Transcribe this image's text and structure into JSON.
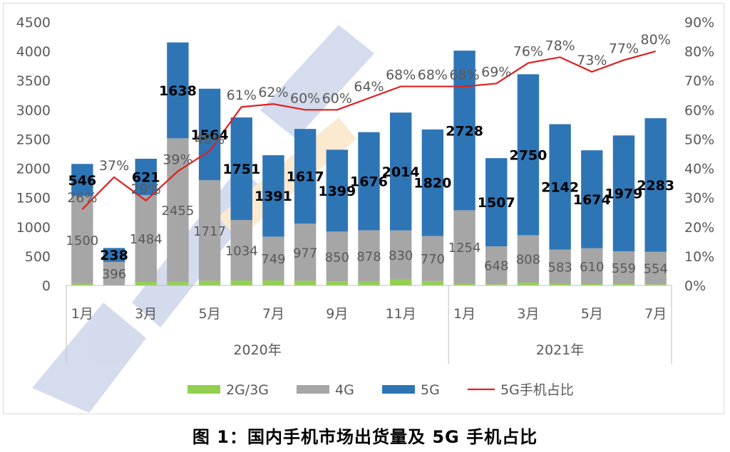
{
  "chart_data": {
    "type": "bar",
    "stacked": true,
    "categories": [
      "2020-1",
      "2020-2",
      "2020-3",
      "2020-4",
      "2020-5",
      "2020-6",
      "2020-7",
      "2020-8",
      "2020-9",
      "2020-10",
      "2020-11",
      "2020-12",
      "2021-1",
      "2021-2",
      "2021-3",
      "2021-4",
      "2021-5",
      "2021-6",
      "2021-7"
    ],
    "tick_labels": [
      "1月",
      "",
      "3月",
      "",
      "5月",
      "",
      "7月",
      "",
      "9月",
      "",
      "11月",
      "",
      "1月",
      "",
      "3月",
      "",
      "5月",
      "",
      "7月"
    ],
    "year_groups": [
      {
        "label": "2020年",
        "count": 12
      },
      {
        "label": "2021年",
        "count": 7
      }
    ],
    "series": [
      {
        "name": "2G/3G",
        "color": "#92d050",
        "axis": "left",
        "values": [
          30,
          6,
          60,
          59,
          80,
          85,
          85,
          80,
          70,
          65,
          110,
          75,
          30,
          20,
          50,
          30,
          25,
          25,
          20
        ]
      },
      {
        "name": "4G",
        "color": "#a6a6a6",
        "axis": "left",
        "values": [
          1500,
          396,
          1484,
          2455,
          1717,
          1034,
          749,
          977,
          850,
          878,
          830,
          770,
          1254,
          648,
          808,
          583,
          610,
          559,
          554
        ]
      },
      {
        "name": "5G",
        "color": "#2e75b6",
        "axis": "left",
        "values": [
          546,
          238,
          621,
          1638,
          1564,
          1751,
          1391,
          1617,
          1399,
          1676,
          2014,
          1820,
          2728,
          1507,
          2750,
          2142,
          1674,
          1979,
          2283
        ]
      },
      {
        "name": "5G手机占比",
        "type": "line",
        "color": "#e02020",
        "axis": "right",
        "values": [
          26,
          37,
          29,
          39,
          46,
          61,
          62,
          60,
          60,
          64,
          68,
          68,
          68,
          69,
          76,
          78,
          73,
          77,
          80
        ]
      }
    ],
    "label_4g": [
      "1500",
      "396",
      "1484",
      "2455",
      "1717",
      "1034",
      "749",
      "977",
      "850",
      "878",
      "830",
      "770",
      "1254",
      "648",
      "808",
      "583",
      "610",
      "559",
      "554"
    ],
    "label_5g": [
      "546",
      "238",
      "621",
      "1638",
      "1564",
      "1751",
      "1391",
      "1617",
      "1399",
      "1676",
      "2014",
      "1820",
      "2728",
      "1507",
      "2750",
      "2142",
      "1674",
      "1979",
      "2283"
    ],
    "label_pct": [
      "26%",
      "37%",
      "29%",
      "39%",
      "46%",
      "61%",
      "62%",
      "60%",
      "60%",
      "64%",
      "68%",
      "68%",
      "68%",
      "69%",
      "76%",
      "78%",
      "73%",
      "77%",
      "80%"
    ],
    "y_left": {
      "min": 0,
      "max": 4500,
      "ticks": [
        "0",
        "500",
        "1000",
        "1500",
        "2000",
        "2500",
        "3000",
        "3500",
        "4000",
        "4500"
      ]
    },
    "y_right": {
      "min": 0,
      "max": 90,
      "ticks": [
        "0%",
        "10%",
        "20%",
        "30%",
        "40%",
        "50%",
        "60%",
        "70%",
        "80%",
        "90%"
      ]
    },
    "legend": {
      "position": "bottom"
    },
    "grid": false
  },
  "caption": "图 1：国内手机市场出货量及 5G 手机占比"
}
